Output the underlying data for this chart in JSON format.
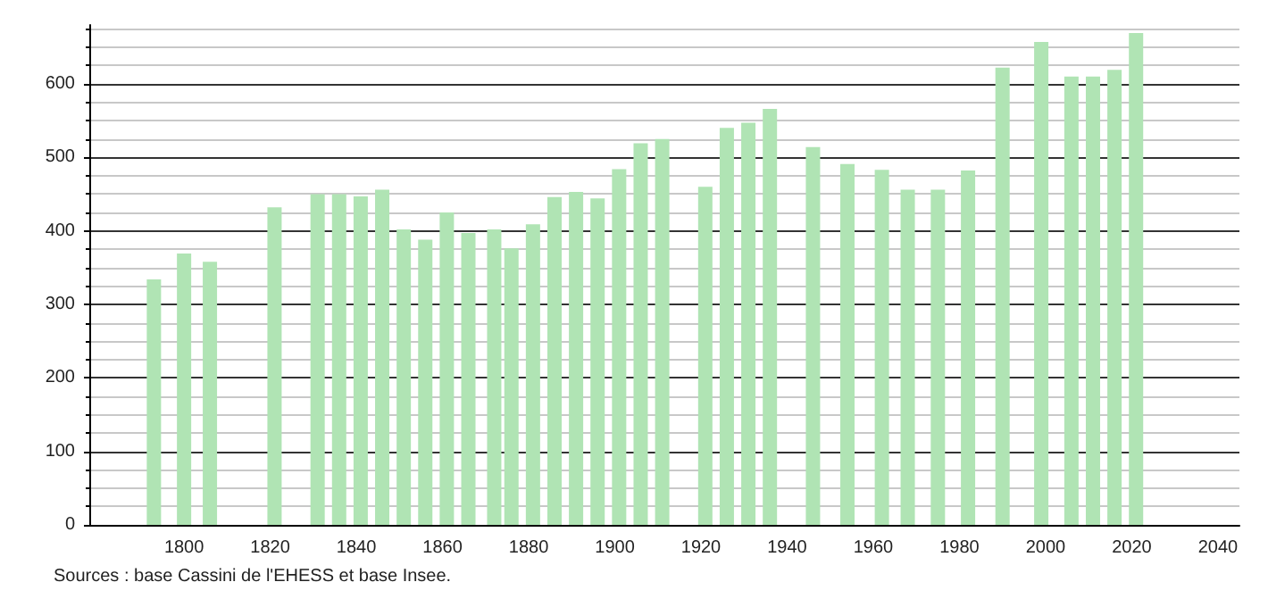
{
  "chart_data": {
    "type": "bar",
    "x": [
      1793,
      1800,
      1806,
      1821,
      1831,
      1836,
      1841,
      1846,
      1851,
      1856,
      1861,
      1866,
      1872,
      1876,
      1881,
      1886,
      1891,
      1896,
      1901,
      1906,
      1911,
      1921,
      1926,
      1931,
      1936,
      1946,
      1954,
      1962,
      1968,
      1975,
      1982,
      1990,
      1999,
      2006,
      2011,
      2016,
      2021
    ],
    "values": [
      334,
      369,
      358,
      432,
      450,
      450,
      447,
      456,
      402,
      388,
      425,
      397,
      402,
      376,
      409,
      446,
      453,
      444,
      484,
      519,
      525,
      460,
      540,
      547,
      566,
      514,
      491,
      483,
      456,
      456,
      482,
      622,
      657,
      610,
      610,
      619,
      669
    ],
    "color": "#b0e4b4",
    "xlim": [
      1778,
      2045
    ],
    "xticks": [
      1800,
      1820,
      1840,
      1860,
      1880,
      1900,
      1920,
      1940,
      1960,
      1980,
      2000,
      2020,
      2040
    ],
    "ylim": [
      0,
      680
    ],
    "yticks": [
      0,
      100,
      200,
      300,
      400,
      500,
      600
    ],
    "grid": "y",
    "annotations": [
      "Sources : base Cassini de l'EHESS et base Insee."
    ]
  }
}
